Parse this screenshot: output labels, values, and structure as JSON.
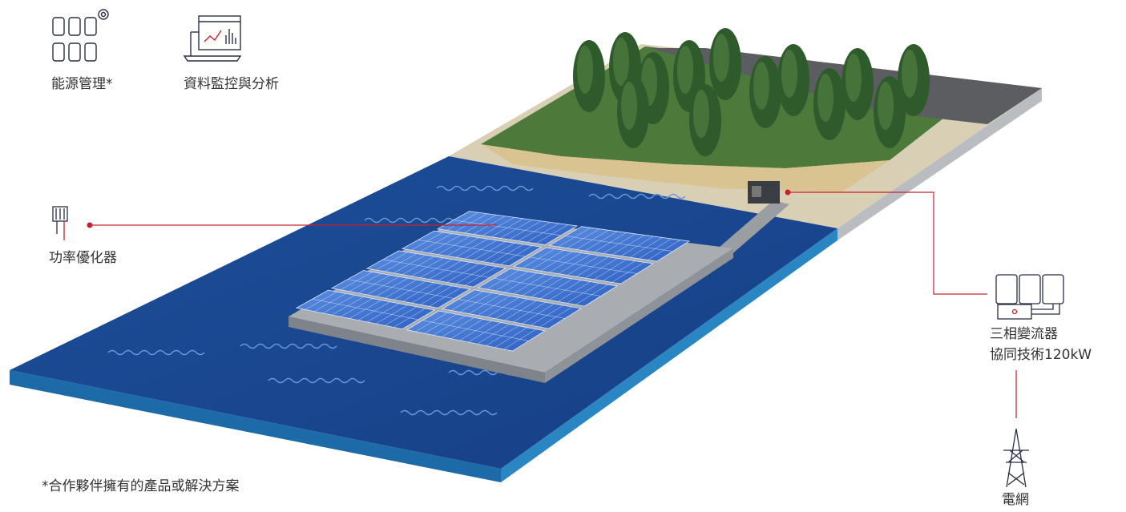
{
  "labels": {
    "energy_management": "能源管理*",
    "monitoring": "資料監控與分析",
    "optimizer": "功率優化器",
    "inverter": [
      "三相變流器",
      "協同技術120kW"
    ],
    "grid": "電網"
  },
  "footnote": "*合作夥伴擁有的產品或解決方案"
}
